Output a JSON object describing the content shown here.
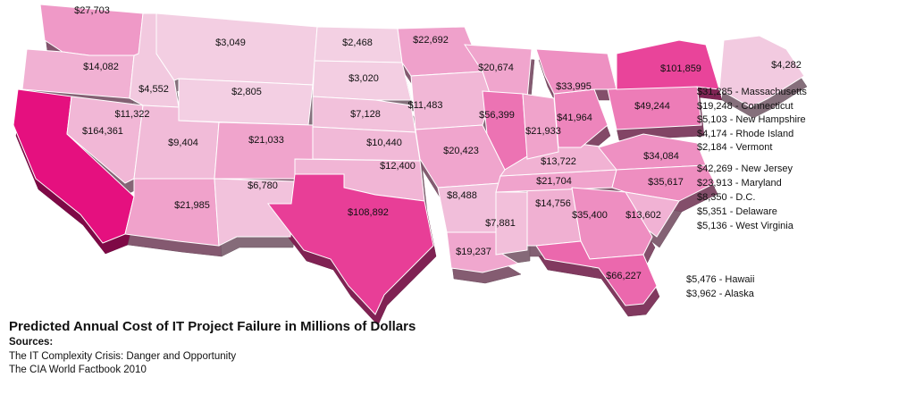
{
  "chart_data": {
    "type": "choropleth",
    "title": "Predicted Annual Cost of IT Project Failure in Millions of Dollars",
    "notes": [
      "Sources:",
      "The IT Complexity Crisis: Danger and Opportunity",
      "The CIA World Factbook 2010"
    ],
    "color_scale": [
      "#f4e1ec",
      "#e5107f"
    ],
    "values": [
      27703,
      14082,
      164361,
      11322,
      4552,
      3049,
      2805,
      9404,
      21033,
      21985,
      6780,
      2468,
      3020,
      7128,
      10440,
      12400,
      108892,
      22692,
      11483,
      20674,
      56399,
      20423,
      8488,
      19237,
      7881,
      14756,
      21704,
      13722,
      21933,
      41964,
      33995,
      49244,
      101859,
      4282,
      34084,
      35617,
      13602,
      35400,
      66227
    ],
    "value_labels": [
      "$27,703",
      "$14,082",
      "$164,361",
      "$11,322",
      "$4,552",
      "$3,049",
      "$2,805",
      "$9,404",
      "$21,033",
      "$21,985",
      "$6,780",
      "$2,468",
      "$3,020",
      "$7,128",
      "$10,440",
      "$12,400",
      "$108,892",
      "$22,692",
      "$11,483",
      "$20,674",
      "$56,399",
      "$20,423",
      "$8,488",
      "$19,237",
      "$7,881",
      "$14,756",
      "$21,704",
      "$13,722",
      "$21,933",
      "$41,964",
      "$33,995",
      "$49,244",
      "$101,859",
      "$4,282",
      "$34,084",
      "$35,617",
      "$13,602",
      "$35,400",
      "$66,227"
    ],
    "list": {
      "values": [
        31285,
        19248,
        5103,
        4174,
        2184,
        42269,
        23913,
        8350,
        5351,
        5136,
        5476,
        3962
      ],
      "labels": [
        "$31,285 - Massachusetts",
        "$19,248 - Connecticut",
        "$5,103 - New Hampshire",
        "$4,174 - Rhode Island",
        "$2,184 - Vermont",
        "$42,269 - New Jersey",
        "$23,913 - Maryland",
        "$8,350 - D.C.",
        "$5,351 - Delaware",
        "$5,136 - West Virginia",
        "$5,476 - Hawaii",
        "$3,962 - Alaska"
      ]
    }
  }
}
